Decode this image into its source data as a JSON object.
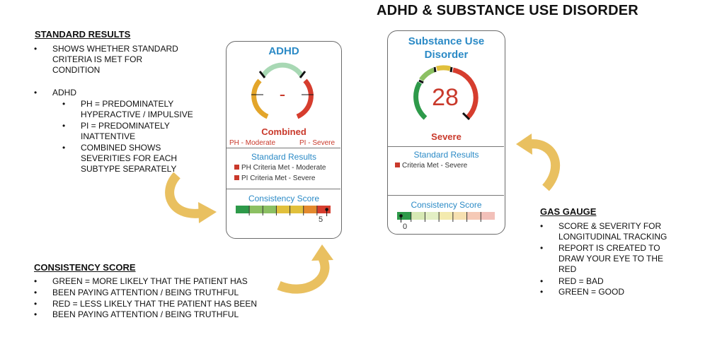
{
  "title": "ADHD & SUBSTANCE USE DISORDER",
  "standard_results": {
    "heading": "STANDARD RESULTS",
    "bullet1": [
      "SHOWS WHETHER STANDARD",
      "CRITERIA IS MET FOR",
      "CONDITION"
    ],
    "bullet2": "ADHD",
    "sub": [
      [
        "PH = PREDOMINATELY",
        "HYPERACTIVE / IMPULSIVE"
      ],
      [
        "PI = PREDOMINATELY",
        "INATTENTIVE"
      ],
      [
        "COMBINED SHOWS",
        "SEVERITIES FOR EACH",
        "SUBTYPE SEPARATELY"
      ]
    ]
  },
  "consistency": {
    "heading": "CONSISTENCY SCORE",
    "lines": [
      "GREEN = MORE LIKELY THAT THE PATIENT HAS",
      "BEEN PAYING ATTENTION / BEING TRUTHFUL",
      "RED = LESS LIKELY THAT THE PATIENT HAS BEEN",
      "BEEN PAYING ATTENTION / BEING TRUTHFUL"
    ]
  },
  "gas_gauge": {
    "heading": "GAS GAUGE",
    "items": [
      [
        "SCORE & SEVERITY FOR",
        "LONGITUDINAL TRACKING"
      ],
      [
        "REPORT IS CREATED TO",
        "DRAW YOUR EYE TO THE",
        "RED"
      ],
      [
        "RED = BAD"
      ],
      [
        "GREEN = GOOD"
      ]
    ]
  },
  "adhd_card": {
    "title": "ADHD",
    "gauge_value": "-",
    "severity": "Combined",
    "left_label": "PH - Moderate",
    "right_label": "PI - Severe",
    "section1": "Standard Results",
    "criteria": [
      "PH Criteria Met - Moderate",
      "PI Criteria Met - Severe"
    ],
    "section2": "Consistency Score",
    "consistency_value": "5",
    "consistency_fraction": 0.96
  },
  "sud_card": {
    "title_line1": "Substance Use",
    "title_line2": "Disorder",
    "gauge_value": "28",
    "severity": "Severe",
    "section1": "Standard Results",
    "criteria": [
      "Criteria Met - Severe"
    ],
    "section2": "Consistency Score",
    "consistency_value": "0",
    "consistency_fraction": 0.04
  },
  "colors": {
    "green": "#2e9a4a",
    "light_green": "#8cc063",
    "yellow": "#e1c03c",
    "orange": "#e48a2e",
    "red": "#d63d2e",
    "arrow": "#e9c060",
    "accent": "#2b8ac6"
  }
}
